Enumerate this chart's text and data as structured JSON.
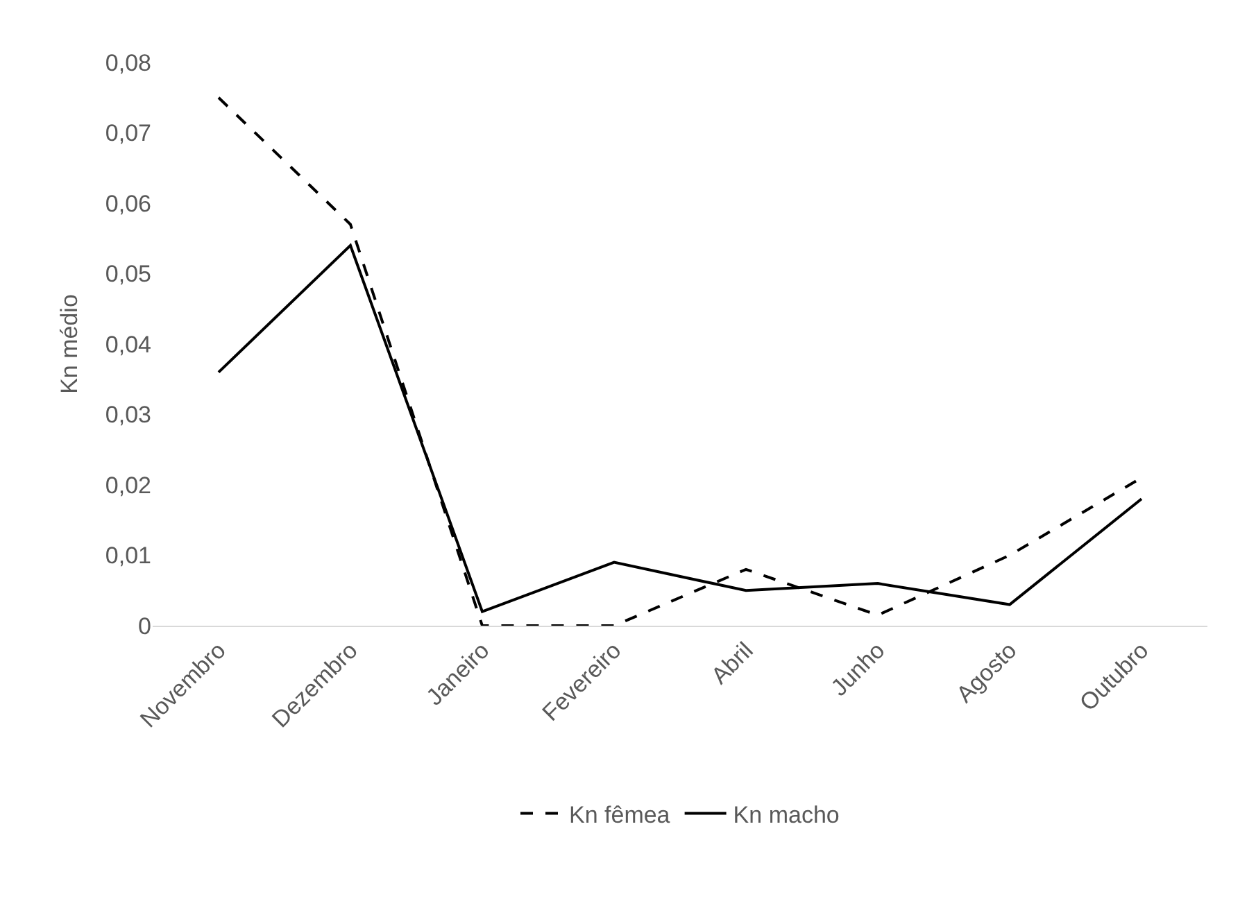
{
  "chart_data": {
    "type": "line",
    "ylabel": "Kn médio",
    "categories": [
      "Novembro",
      "Dezembro",
      "Janeiro",
      "Fevereiro",
      "Abril",
      "Junho",
      "Agosto",
      "Outubro"
    ],
    "series": [
      {
        "name": "Kn fêmea",
        "color": "#000000",
        "line_style": "dashed",
        "values": [
          0.075,
          0.057,
          0,
          0,
          0.008,
          0.0015,
          0.01,
          0.021
        ]
      },
      {
        "name": "Kn macho",
        "color": "#000000",
        "line_style": "solid",
        "values": [
          0.036,
          0.054,
          0.002,
          0.009,
          0.005,
          0.006,
          0.003,
          0.018
        ]
      }
    ],
    "ylim": [
      0,
      0.08
    ],
    "yticks": [
      {
        "value": 0,
        "label": "0"
      },
      {
        "value": 0.01,
        "label": "0,01"
      },
      {
        "value": 0.02,
        "label": "0,02"
      },
      {
        "value": 0.03,
        "label": "0,03"
      },
      {
        "value": 0.04,
        "label": "0,04"
      },
      {
        "value": 0.05,
        "label": "0,05"
      },
      {
        "value": 0.06,
        "label": "0,06"
      },
      {
        "value": 0.07,
        "label": "0,07"
      },
      {
        "value": 0.08,
        "label": "0,08"
      }
    ],
    "legend": "bottom"
  }
}
